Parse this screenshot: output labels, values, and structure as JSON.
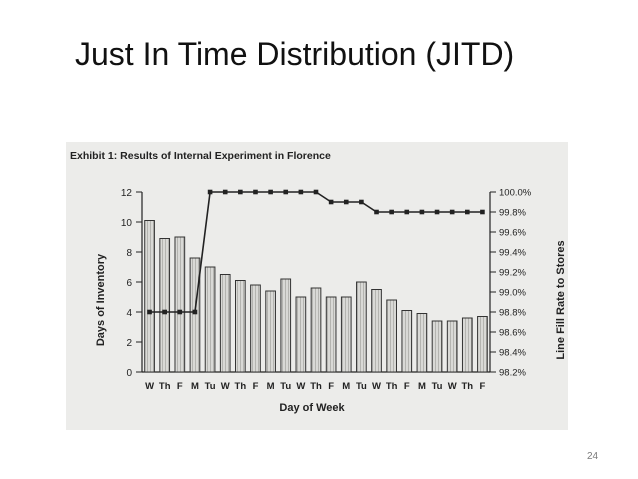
{
  "slide": {
    "title": "Just In Time Distribution (JITD)",
    "page_number": "24"
  },
  "chart_data": {
    "type": "bar",
    "title": "Exhibit 1:  Results of Internal Experiment in Florence",
    "xlabel": "Day of Week",
    "ylabel": "Days of Inventory",
    "y2label": "Line Fill Rate to Stores",
    "categories": [
      "W",
      "Th",
      "F",
      "M",
      "Tu",
      "W",
      "Th",
      "F",
      "M",
      "Tu",
      "W",
      "Th",
      "F",
      "M",
      "Tu",
      "W",
      "Th",
      "F",
      "M",
      "Tu",
      "W",
      "Th",
      "F"
    ],
    "ylim": [
      0,
      12
    ],
    "yticks": [
      "0",
      "2",
      "4",
      "6",
      "8",
      "10",
      "12"
    ],
    "y2lim": [
      98.2,
      100.0
    ],
    "y2ticks": [
      "98.2%",
      "98.4%",
      "98.6%",
      "98.8%",
      "99.0%",
      "99.2%",
      "99.4%",
      "99.6%",
      "99.8%",
      "100.0%"
    ],
    "grid": false,
    "series": [
      {
        "type": "bar",
        "axis": "left",
        "values": [
          10.1,
          8.9,
          9.0,
          7.6,
          7.0,
          6.5,
          6.1,
          5.8,
          5.4,
          6.2,
          5.0,
          5.6,
          5.0,
          5.0,
          6.0,
          5.5,
          4.8,
          4.1,
          3.9,
          3.4,
          3.4,
          3.6,
          3.7
        ]
      },
      {
        "type": "line",
        "axis": "right",
        "values": [
          98.8,
          98.8,
          98.8,
          98.8,
          100.0,
          100.0,
          100.0,
          100.0,
          100.0,
          100.0,
          100.0,
          100.0,
          99.9,
          99.9,
          99.9,
          99.8,
          99.8,
          99.8,
          99.8,
          99.8,
          99.8,
          99.8,
          99.8
        ]
      }
    ]
  }
}
